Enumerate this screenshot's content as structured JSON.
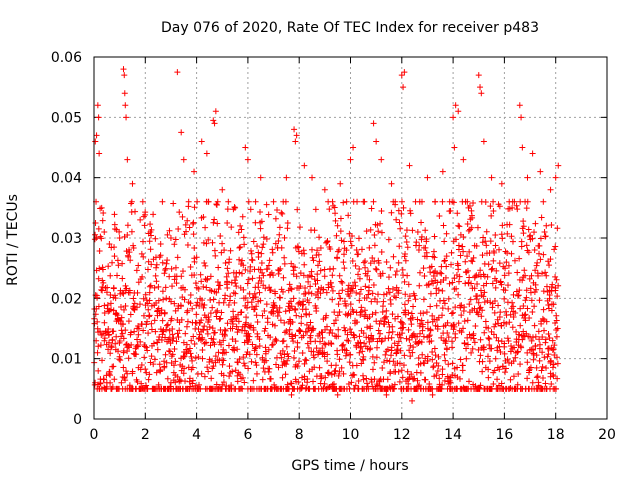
{
  "chart_data": {
    "type": "scatter",
    "title": "Day 076 of 2020, Rate Of TEC Index for receiver p483",
    "xlabel": "GPS time / hours",
    "ylabel": "ROTI / TECUs",
    "xlim": [
      0,
      20
    ],
    "ylim": [
      0,
      0.06
    ],
    "grid": true,
    "x_ticks": [
      0,
      2,
      4,
      6,
      8,
      10,
      12,
      14,
      16,
      18,
      20
    ],
    "y_ticks": [
      0,
      0.01,
      0.02,
      0.03,
      0.04,
      0.05,
      0.06
    ],
    "x_tick_labels": [
      "0",
      "2",
      "4",
      "6",
      "8",
      "10",
      "12",
      "14",
      "16",
      "18",
      "20"
    ],
    "y_tick_labels": [
      "0",
      "0.01",
      "0.02",
      "0.03",
      "0.04",
      "0.05",
      "0.06"
    ],
    "marker": "plus",
    "marker_color": "#ff0000",
    "series": [
      {
        "name": "p483",
        "x_range": [
          0.0,
          18.1
        ],
        "points": [
          [
            0.05,
            0.046
          ],
          [
            0.1,
            0.047
          ],
          [
            0.15,
            0.052
          ],
          [
            0.18,
            0.05
          ],
          [
            0.2,
            0.044
          ],
          [
            0.3,
            0.035
          ],
          [
            0.4,
            0.031
          ],
          [
            0.6,
            0.029
          ],
          [
            0.8,
            0.027
          ],
          [
            1.0,
            0.03
          ],
          [
            1.15,
            0.058
          ],
          [
            1.18,
            0.057
          ],
          [
            1.2,
            0.054
          ],
          [
            1.22,
            0.052
          ],
          [
            1.25,
            0.05
          ],
          [
            1.3,
            0.043
          ],
          [
            1.5,
            0.039
          ],
          [
            1.8,
            0.033
          ],
          [
            2.2,
            0.031
          ],
          [
            2.6,
            0.029
          ],
          [
            3.0,
            0.03
          ],
          [
            3.25,
            0.0575
          ],
          [
            3.4,
            0.0475
          ],
          [
            3.5,
            0.043
          ],
          [
            3.9,
            0.041
          ],
          [
            4.2,
            0.046
          ],
          [
            4.4,
            0.044
          ],
          [
            4.65,
            0.0495
          ],
          [
            4.7,
            0.049
          ],
          [
            4.75,
            0.051
          ],
          [
            5.0,
            0.038
          ],
          [
            5.5,
            0.035
          ],
          [
            5.9,
            0.045
          ],
          [
            6.0,
            0.043
          ],
          [
            6.3,
            0.036
          ],
          [
            6.5,
            0.04
          ],
          [
            7.0,
            0.036
          ],
          [
            7.5,
            0.04
          ],
          [
            7.8,
            0.048
          ],
          [
            7.85,
            0.046
          ],
          [
            7.9,
            0.047
          ],
          [
            8.2,
            0.042
          ],
          [
            8.5,
            0.04
          ],
          [
            9.0,
            0.038
          ],
          [
            9.3,
            0.036
          ],
          [
            9.6,
            0.039
          ],
          [
            10.0,
            0.043
          ],
          [
            10.1,
            0.045
          ],
          [
            10.5,
            0.036
          ],
          [
            10.9,
            0.049
          ],
          [
            11.0,
            0.046
          ],
          [
            11.2,
            0.043
          ],
          [
            11.6,
            0.039
          ],
          [
            12.0,
            0.057
          ],
          [
            12.05,
            0.055
          ],
          [
            12.1,
            0.0575
          ],
          [
            12.3,
            0.042
          ],
          [
            12.7,
            0.036
          ],
          [
            13.0,
            0.04
          ],
          [
            13.3,
            0.036
          ],
          [
            13.6,
            0.041
          ],
          [
            14.0,
            0.05
          ],
          [
            14.05,
            0.045
          ],
          [
            14.1,
            0.052
          ],
          [
            14.2,
            0.051
          ],
          [
            14.4,
            0.043
          ],
          [
            14.6,
            0.035
          ],
          [
            15.0,
            0.057
          ],
          [
            15.05,
            0.055
          ],
          [
            15.1,
            0.054
          ],
          [
            15.2,
            0.046
          ],
          [
            15.5,
            0.04
          ],
          [
            15.9,
            0.039
          ],
          [
            16.3,
            0.035
          ],
          [
            16.6,
            0.052
          ],
          [
            16.65,
            0.05
          ],
          [
            16.7,
            0.045
          ],
          [
            16.9,
            0.04
          ],
          [
            17.1,
            0.044
          ],
          [
            17.4,
            0.041
          ],
          [
            17.8,
            0.038
          ],
          [
            18.0,
            0.04
          ],
          [
            18.1,
            0.042
          ],
          [
            0.5,
            0.006
          ],
          [
            1.5,
            0.005
          ],
          [
            3.0,
            0.006
          ],
          [
            4.6,
            0.005
          ],
          [
            6.0,
            0.005
          ],
          [
            7.7,
            0.004
          ],
          [
            9.5,
            0.004
          ],
          [
            11.4,
            0.004
          ],
          [
            12.4,
            0.003
          ],
          [
            13.2,
            0.004
          ],
          [
            14.7,
            0.005
          ],
          [
            16.4,
            0.005
          ],
          [
            17.8,
            0.007
          ]
        ],
        "dense_band": {
          "y_min": 0.005,
          "y_max": 0.03,
          "y_typical": 0.015
        }
      }
    ]
  }
}
